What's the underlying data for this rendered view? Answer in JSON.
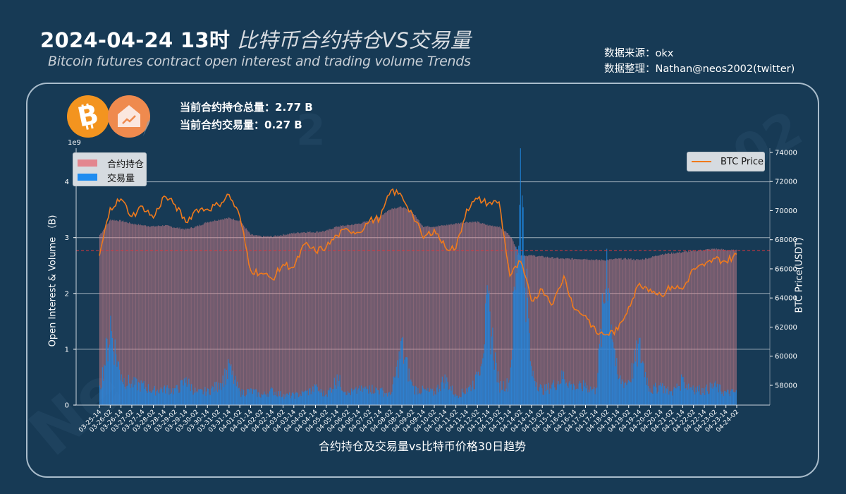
{
  "header": {
    "title_date": "2024-04-24 13时",
    "title_cn": "比特币合约持仓VS交易量",
    "subtitle_en": "Bitcoin futures contract open interest and trading volume Trends",
    "source_line": "数据来源：okx",
    "credit_line": "数据整理：Nathan@neos2002(twitter)"
  },
  "logos": {
    "left": "bitcoin-icon",
    "right": "house-chart-icon"
  },
  "stats": {
    "open_interest_label": "当前合约持仓总量：2.77 B",
    "volume_label": "当前合约交易量：0.27 B"
  },
  "colors": {
    "background": "#173a55",
    "open_interest": "#e3868f",
    "volume": "#1f86e0",
    "btc_price": "#f07a1c",
    "reference_line": "#d9363e",
    "grid": "#c9d2da"
  },
  "chart_data": {
    "type": "bar+line",
    "title": "合约持仓及交易量vs比特币价格30日趋势",
    "xlabel": "合约持仓及交易量vs比特币价格30日趋势",
    "ylabel_left": "Open Interest & Volume （B)",
    "ylabel_right": "BTC Price(USDT)",
    "left_axis_exponent": "1e9",
    "left_ticks": [
      "0",
      "1",
      "2",
      "3",
      "4"
    ],
    "right_ticks": [
      "58000",
      "60000",
      "62000",
      "64000",
      "66000",
      "68000",
      "70000",
      "72000",
      "74000"
    ],
    "ylim_left": [
      0,
      4.6
    ],
    "ylim_right": [
      56700,
      74500
    ],
    "grid": true,
    "legend_left": [
      "合约持仓",
      "交易量"
    ],
    "legend_right": [
      "BTC Price"
    ],
    "reference_line": {
      "value": 2.77,
      "axis": "left",
      "style": "dashed"
    },
    "categories": [
      "03-25-14",
      "03-26-02",
      "03-26-14",
      "03-27-02",
      "03-27-14",
      "03-28-02",
      "03-28-14",
      "03-29-02",
      "03-29-14",
      "03-30-02",
      "03-30-14",
      "03-31-02",
      "03-31-14",
      "04-01-02",
      "04-01-14",
      "04-02-02",
      "04-02-14",
      "04-03-02",
      "04-03-14",
      "04-04-02",
      "04-04-14",
      "04-05-02",
      "04-05-14",
      "04-06-02",
      "04-06-14",
      "04-07-02",
      "04-07-14",
      "04-08-02",
      "04-08-14",
      "04-09-02",
      "04-09-14",
      "04-10-02",
      "04-10-14",
      "04-11-02",
      "04-11-14",
      "04-12-02",
      "04-12-14",
      "04-13-02",
      "04-13-14",
      "04-14-02",
      "04-14-14",
      "04-15-02",
      "04-15-14",
      "04-16-02",
      "04-16-14",
      "04-17-02",
      "04-17-14",
      "04-18-02",
      "04-18-14",
      "04-19-02",
      "04-19-14",
      "04-20-02",
      "04-20-14",
      "04-21-02",
      "04-21-14",
      "04-22-02",
      "04-22-14",
      "04-23-02",
      "04-23-14",
      "04-24-02"
    ],
    "series": [
      {
        "name": "合约持仓",
        "type": "bar",
        "axis": "left",
        "values": [
          3.05,
          3.32,
          3.3,
          3.25,
          3.22,
          3.2,
          3.22,
          3.18,
          3.15,
          3.2,
          3.28,
          3.32,
          3.35,
          3.3,
          3.05,
          3.02,
          3.02,
          3.05,
          3.08,
          3.1,
          3.1,
          3.12,
          3.2,
          3.22,
          3.25,
          3.3,
          3.38,
          3.52,
          3.55,
          3.45,
          3.2,
          3.2,
          3.22,
          3.25,
          3.28,
          3.28,
          3.22,
          3.2,
          3.05,
          2.68,
          2.68,
          2.66,
          2.64,
          2.62,
          2.62,
          2.62,
          2.6,
          2.6,
          2.62,
          2.62,
          2.6,
          2.64,
          2.7,
          2.72,
          2.74,
          2.76,
          2.78,
          2.8,
          2.78,
          2.77
        ]
      },
      {
        "name": "交易量",
        "type": "bar",
        "axis": "left",
        "values": [
          0.35,
          1.6,
          0.55,
          0.45,
          0.4,
          0.3,
          0.35,
          0.3,
          0.5,
          0.25,
          0.3,
          0.4,
          0.75,
          0.25,
          0.3,
          0.2,
          0.3,
          0.2,
          0.2,
          0.25,
          0.35,
          0.2,
          0.55,
          0.25,
          0.3,
          0.35,
          0.3,
          0.2,
          1.2,
          0.35,
          0.3,
          0.25,
          0.55,
          0.2,
          0.3,
          0.55,
          2.0,
          0.4,
          0.45,
          4.6,
          0.7,
          0.3,
          0.4,
          0.6,
          0.35,
          0.4,
          0.3,
          2.8,
          0.55,
          0.45,
          1.2,
          0.3,
          0.4,
          0.25,
          0.5,
          0.35,
          0.3,
          0.4,
          0.25,
          0.27
        ]
      },
      {
        "name": "BTC Price",
        "type": "line",
        "axis": "right",
        "values": [
          66900,
          70200,
          70800,
          69600,
          70300,
          69500,
          71000,
          70400,
          69200,
          70100,
          70100,
          70400,
          71100,
          69600,
          65900,
          65700,
          65300,
          66300,
          66100,
          67700,
          67200,
          67500,
          68300,
          68700,
          68500,
          69300,
          69500,
          71400,
          71000,
          69700,
          68100,
          68700,
          67500,
          67400,
          70100,
          70800,
          70500,
          70600,
          65500,
          66500,
          63800,
          64600,
          63600,
          65500,
          63200,
          62800,
          61600,
          61500,
          61800,
          63400,
          65000,
          64600,
          64200,
          64800,
          64600,
          66000,
          66200,
          66700,
          66500,
          67000
        ]
      }
    ]
  }
}
